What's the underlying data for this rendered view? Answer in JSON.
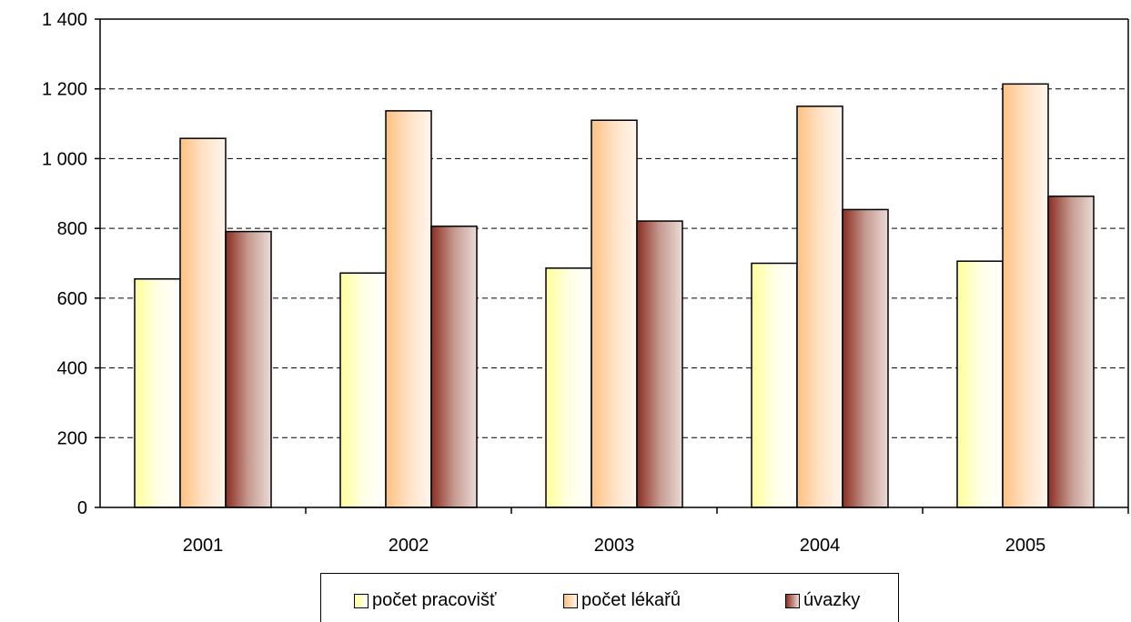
{
  "chart_data": {
    "type": "bar",
    "categories": [
      "2001",
      "2002",
      "2003",
      "2004",
      "2005"
    ],
    "series": [
      {
        "name": "počet pracovišť",
        "values": [
          655,
          672,
          686,
          700,
          706
        ],
        "color": "#ffff99"
      },
      {
        "name": "počet lékařů",
        "values": [
          1058,
          1137,
          1110,
          1150,
          1214
        ],
        "color": "#ffcc99"
      },
      {
        "name": "úvazky",
        "values": [
          791,
          806,
          821,
          854,
          892
        ],
        "color": "#993333"
      }
    ],
    "y_ticks": [
      "0",
      "200",
      "400",
      "600",
      "800",
      "1 000",
      "1 200",
      "1 400"
    ],
    "ylim": [
      0,
      1400
    ],
    "grid": "dashed horizontal",
    "legend_position": "bottom"
  }
}
